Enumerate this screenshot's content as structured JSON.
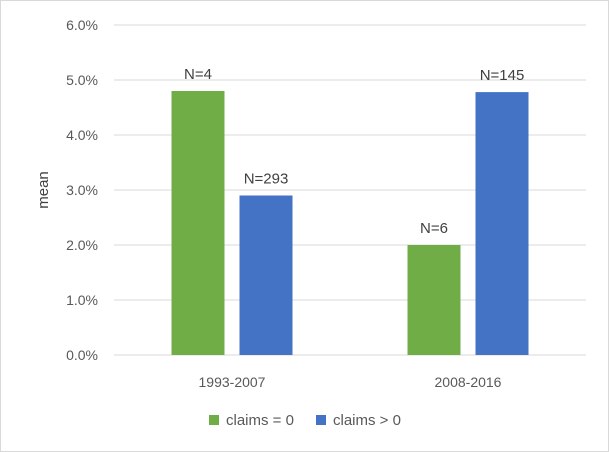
{
  "chart_data": {
    "type": "bar",
    "title": "",
    "xlabel": "",
    "ylabel": "mean",
    "categories": [
      "1993-2007",
      "2008-2016"
    ],
    "series": [
      {
        "name": "claims = 0",
        "color": "#70ad47",
        "values": [
          4.8,
          2.0
        ],
        "labels": [
          "N=4",
          "N=6"
        ]
      },
      {
        "name": "claims > 0",
        "color": "#4472c4",
        "values": [
          2.9,
          4.78
        ],
        "labels": [
          "N=293",
          "N=145"
        ]
      }
    ],
    "ylim": [
      0,
      6
    ],
    "yticks": [
      0,
      1,
      2,
      3,
      4,
      5,
      6
    ],
    "ytick_labels": [
      "0.0%",
      "1.0%",
      "2.0%",
      "3.0%",
      "4.0%",
      "5.0%",
      "6.0%"
    ],
    "grid": true,
    "legend_position": "bottom",
    "gridline_color": "#d9d9d9"
  }
}
